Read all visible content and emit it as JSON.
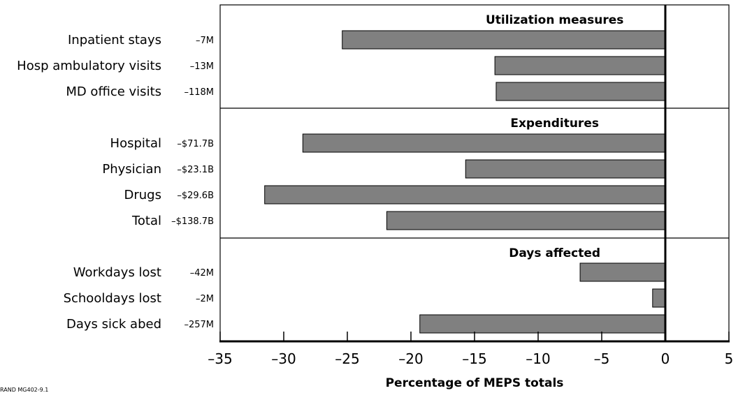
{
  "chart_data": {
    "type": "bar",
    "orientation": "horizontal",
    "xlabel": "Percentage of MEPS totals",
    "xlim": [
      -35,
      5
    ],
    "xticks": [
      -35,
      -30,
      -25,
      -20,
      -15,
      -10,
      -5,
      0,
      5
    ],
    "xtick_labels": [
      "–35",
      "–30",
      "–25",
      "–20",
      "–15",
      "–10",
      "–5",
      "0",
      "5"
    ],
    "grid": false,
    "bar_color": "#808080",
    "source_note": "RAND MG402-9.1",
    "sections": [
      {
        "title": "Utilization measures",
        "bars": [
          {
            "label": "Inpatient stays",
            "total": "–7M",
            "value": -25.4
          },
          {
            "label": "Hosp ambulatory visits",
            "total": "–13M",
            "value": -13.4
          },
          {
            "label": "MD office visits",
            "total": "–118M",
            "value": -13.3
          }
        ]
      },
      {
        "title": "Expenditures",
        "bars": [
          {
            "label": "Hospital",
            "total": "–$71.7B",
            "value": -28.5
          },
          {
            "label": "Physician",
            "total": "–$23.1B",
            "value": -15.7
          },
          {
            "label": "Drugs",
            "total": "–$29.6B",
            "value": -31.5
          },
          {
            "label": "Total",
            "total": "–$138.7B",
            "value": -21.9
          }
        ]
      },
      {
        "title": "Days affected",
        "bars": [
          {
            "label": "Workdays lost",
            "total": "–42M",
            "value": -6.7
          },
          {
            "label": "Schooldays lost",
            "total": "–2M",
            "value": -1.0
          },
          {
            "label": "Days sick abed",
            "total": "–257M",
            "value": -19.3
          }
        ]
      }
    ]
  }
}
